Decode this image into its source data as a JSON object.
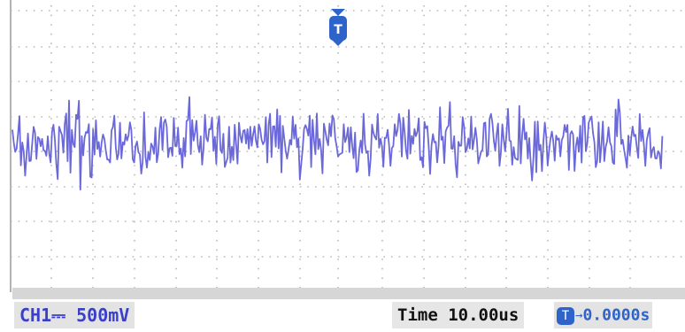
{
  "channel": {
    "name": "CH1",
    "coupling_symbol": "⎓",
    "scale": "500mV",
    "trace_color": "#6b68d9"
  },
  "timebase": {
    "label": "Time",
    "value": "10.00us"
  },
  "trigger": {
    "marker_text": "T",
    "offset_arrow": "→",
    "offset_value": "0.0000s",
    "color": "#2e63c9"
  },
  "display": {
    "grid": "dotted",
    "grid_color": "#b9b9b9"
  }
}
